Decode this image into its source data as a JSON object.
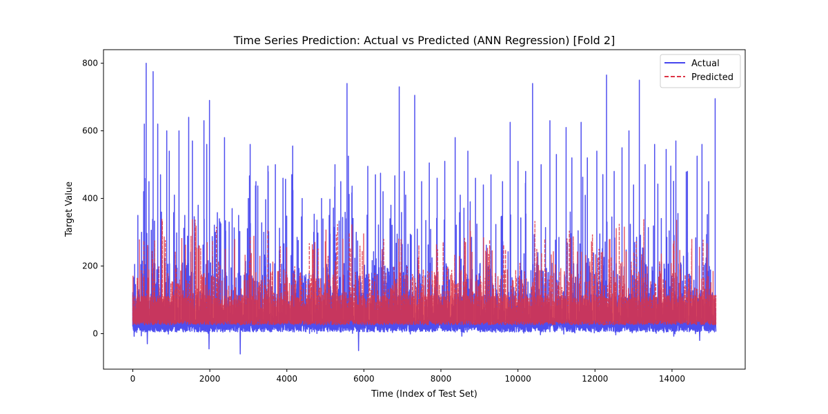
{
  "chart_data": {
    "type": "line",
    "title": "Time Series Prediction: Actual vs Predicted (ANN Regression) [Fold 2]",
    "xlabel": "Time (Index of Test Set)",
    "ylabel": "Target Value",
    "xlim": [
      -760,
      15900
    ],
    "ylim": [
      -105,
      840
    ],
    "x_ticks": [
      0,
      2000,
      4000,
      6000,
      8000,
      10000,
      12000,
      14000
    ],
    "x_tick_labels": [
      "0",
      "2000",
      "4000",
      "6000",
      "8000",
      "10000",
      "12000",
      "14000"
    ],
    "y_ticks": [
      0,
      200,
      400,
      600,
      800
    ],
    "y_tick_labels": [
      "0",
      "200",
      "400",
      "600",
      "800"
    ],
    "n_points": 15140,
    "grid": false,
    "legend_position": "top-right",
    "series": [
      {
        "name": "Actual",
        "color": "#4444ee",
        "style": "solid",
        "baseline_range": [
          5,
          35
        ],
        "typical_range": [
          0,
          210
        ],
        "peaks": [
          {
            "x": 50,
            "y": 205
          },
          {
            "x": 130,
            "y": 350
          },
          {
            "x": 230,
            "y": 300
          },
          {
            "x": 280,
            "y": 420
          },
          {
            "x": 300,
            "y": 620
          },
          {
            "x": 350,
            "y": 800
          },
          {
            "x": 420,
            "y": 450
          },
          {
            "x": 530,
            "y": 775
          },
          {
            "x": 650,
            "y": 620
          },
          {
            "x": 720,
            "y": 470
          },
          {
            "x": 880,
            "y": 600
          },
          {
            "x": 950,
            "y": 540
          },
          {
            "x": 1080,
            "y": 410
          },
          {
            "x": 1200,
            "y": 600
          },
          {
            "x": 1350,
            "y": 350
          },
          {
            "x": 1450,
            "y": 640
          },
          {
            "x": 1550,
            "y": 570
          },
          {
            "x": 1700,
            "y": 380
          },
          {
            "x": 1850,
            "y": 630
          },
          {
            "x": 1920,
            "y": 560
          },
          {
            "x": 1990,
            "y": 690
          },
          {
            "x": 2150,
            "y": 300
          },
          {
            "x": 2250,
            "y": 340
          },
          {
            "x": 2380,
            "y": 580
          },
          {
            "x": 2500,
            "y": 330
          },
          {
            "x": 2750,
            "y": 350
          },
          {
            "x": 3000,
            "y": 400
          },
          {
            "x": 3050,
            "y": 560
          },
          {
            "x": 3200,
            "y": 450
          },
          {
            "x": 3400,
            "y": 300
          },
          {
            "x": 3700,
            "y": 500
          },
          {
            "x": 3900,
            "y": 460
          },
          {
            "x": 4150,
            "y": 555
          },
          {
            "x": 4400,
            "y": 400
          },
          {
            "x": 4700,
            "y": 300
          },
          {
            "x": 4900,
            "y": 400
          },
          {
            "x": 5100,
            "y": 350
          },
          {
            "x": 5250,
            "y": 500
          },
          {
            "x": 5400,
            "y": 450
          },
          {
            "x": 5560,
            "y": 740
          },
          {
            "x": 5600,
            "y": 525
          },
          {
            "x": 5800,
            "y": 300
          },
          {
            "x": 6100,
            "y": 495
          },
          {
            "x": 6300,
            "y": 470
          },
          {
            "x": 6500,
            "y": 420
          },
          {
            "x": 6700,
            "y": 380
          },
          {
            "x": 6920,
            "y": 730
          },
          {
            "x": 7050,
            "y": 480
          },
          {
            "x": 7320,
            "y": 705
          },
          {
            "x": 7500,
            "y": 450
          },
          {
            "x": 7700,
            "y": 505
          },
          {
            "x": 7900,
            "y": 460
          },
          {
            "x": 8100,
            "y": 510
          },
          {
            "x": 8370,
            "y": 580
          },
          {
            "x": 8500,
            "y": 410
          },
          {
            "x": 8700,
            "y": 540
          },
          {
            "x": 8900,
            "y": 460
          },
          {
            "x": 9100,
            "y": 440
          },
          {
            "x": 9300,
            "y": 470
          },
          {
            "x": 9600,
            "y": 450
          },
          {
            "x": 9800,
            "y": 625
          },
          {
            "x": 10000,
            "y": 510
          },
          {
            "x": 10200,
            "y": 480
          },
          {
            "x": 10380,
            "y": 740
          },
          {
            "x": 10600,
            "y": 500
          },
          {
            "x": 10830,
            "y": 630
          },
          {
            "x": 11000,
            "y": 530
          },
          {
            "x": 11250,
            "y": 610
          },
          {
            "x": 11400,
            "y": 520
          },
          {
            "x": 11640,
            "y": 625
          },
          {
            "x": 11800,
            "y": 520
          },
          {
            "x": 12050,
            "y": 540
          },
          {
            "x": 12300,
            "y": 765
          },
          {
            "x": 12500,
            "y": 480
          },
          {
            "x": 12700,
            "y": 550
          },
          {
            "x": 12880,
            "y": 600
          },
          {
            "x": 13000,
            "y": 440
          },
          {
            "x": 13150,
            "y": 750
          },
          {
            "x": 13300,
            "y": 500
          },
          {
            "x": 13550,
            "y": 560
          },
          {
            "x": 13850,
            "y": 545
          },
          {
            "x": 14100,
            "y": 570
          },
          {
            "x": 14400,
            "y": 480
          },
          {
            "x": 14650,
            "y": 525
          },
          {
            "x": 14780,
            "y": 560
          },
          {
            "x": 14950,
            "y": 450
          },
          {
            "x": 15120,
            "y": 695
          }
        ],
        "troughs": [
          {
            "x": 380,
            "y": -30
          },
          {
            "x": 1980,
            "y": -45
          },
          {
            "x": 2790,
            "y": -60
          },
          {
            "x": 5860,
            "y": -50
          },
          {
            "x": 14720,
            "y": -20
          }
        ]
      },
      {
        "name": "Predicted",
        "color": "#dd3344",
        "style": "dashed",
        "baseline_range": [
          25,
          110
        ],
        "typical_range": [
          20,
          200
        ],
        "max": 340
      }
    ]
  }
}
